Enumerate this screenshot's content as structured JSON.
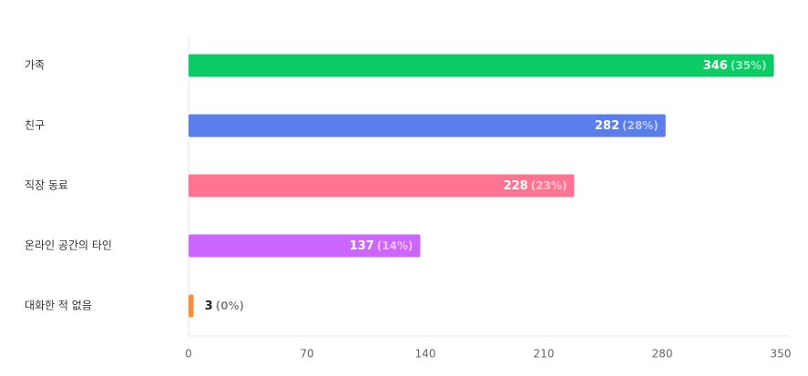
{
  "chart_data": {
    "type": "bar",
    "orientation": "horizontal",
    "categories": [
      "가족",
      "친구",
      "직장 동료",
      "온라인 공간의 타인",
      "대화한 적 없음"
    ],
    "values": [
      346,
      282,
      228,
      137,
      3
    ],
    "percent_labels": [
      "(35%)",
      "(28%)",
      "(23%)",
      "(14%)",
      "(0%)"
    ],
    "colors": [
      "#0dcc66",
      "#5a7eeb",
      "#ff7393",
      "#cc66ff",
      "#ff8c3a"
    ],
    "xlim": [
      0,
      350
    ],
    "xticks": [
      0,
      70,
      140,
      210,
      280,
      350
    ],
    "grid": false,
    "legend": "none"
  }
}
